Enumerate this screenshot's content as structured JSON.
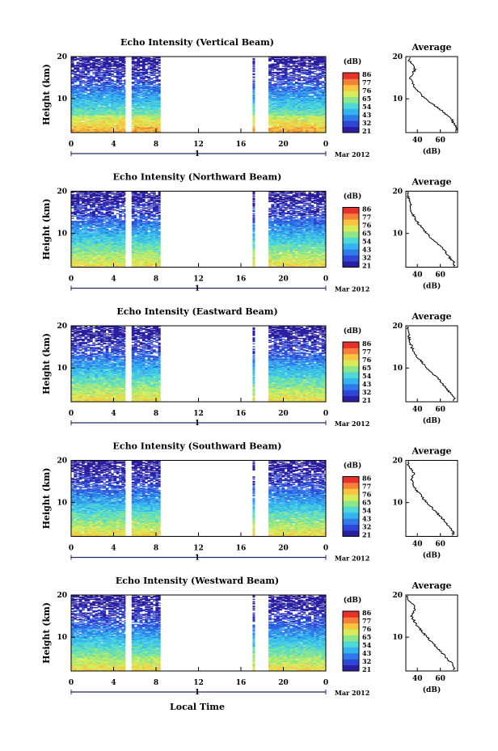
{
  "figure": {
    "x_axis_label": "Local Time",
    "date_label": "Mar 2012",
    "time_ticks": [
      "0",
      "4",
      "8",
      "12",
      "16",
      "20",
      "0"
    ],
    "day_label": "1",
    "height_label": "Height (km)",
    "height_ticks": [
      "20",
      "10"
    ],
    "colorbar_unit": "(dB)",
    "colorbar_ticks": [
      "86",
      "77",
      "76",
      "65",
      "54",
      "43",
      "32",
      "21"
    ],
    "avg_title": "Average",
    "avg_unit": "(dB)",
    "avg_x_ticks": [
      "40",
      "60"
    ]
  },
  "colors": {
    "colormap": [
      "#2b1fa0",
      "#2f46d8",
      "#2f7be8",
      "#35b3ef",
      "#4fd8d6",
      "#8ee68a",
      "#d7ec5a",
      "#f6c640",
      "#f5803a",
      "#e8302a"
    ]
  },
  "chart_data": [
    {
      "type": "heatmap",
      "title": "Echo Intensity (Vertical Beam)",
      "xlabel": "Local Time",
      "ylabel": "Height (km)",
      "xlim": [
        0,
        24
      ],
      "ylim": [
        2,
        20
      ],
      "zlim": [
        21,
        86
      ],
      "data_segments_hours": [
        [
          0,
          5.1
        ],
        [
          5.7,
          8.4
        ],
        [
          17.1,
          17.3
        ],
        [
          18.6,
          24
        ]
      ],
      "profile": {
        "title": "Average",
        "xlabel": "(dB)",
        "xlim": [
          30,
          75
        ],
        "ylim": [
          2,
          20
        ],
        "height_km": [
          3,
          5,
          7,
          9,
          11,
          13,
          15,
          17,
          19
        ],
        "intensity_db": [
          74,
          70,
          62,
          52,
          43,
          37,
          34,
          38,
          33
        ]
      }
    },
    {
      "type": "heatmap",
      "title": "Echo Intensity (Northward Beam)",
      "xlabel": "Local Time",
      "ylabel": "Height (km)",
      "xlim": [
        0,
        24
      ],
      "ylim": [
        2,
        20
      ],
      "zlim": [
        21,
        86
      ],
      "data_segments_hours": [
        [
          0,
          5.1
        ],
        [
          5.7,
          8.4
        ],
        [
          17.1,
          17.3
        ],
        [
          18.6,
          24
        ]
      ],
      "profile": {
        "title": "Average",
        "xlabel": "(dB)",
        "xlim": [
          30,
          75
        ],
        "ylim": [
          2,
          20
        ],
        "height_km": [
          3,
          5,
          7,
          9,
          11,
          13,
          15,
          17,
          19
        ],
        "intensity_db": [
          72,
          66,
          60,
          52,
          45,
          39,
          35,
          34,
          32
        ]
      }
    },
    {
      "type": "heatmap",
      "title": "Echo Intensity (Eastward Beam)",
      "xlabel": "Local Time",
      "ylabel": "Height (km)",
      "xlim": [
        0,
        24
      ],
      "ylim": [
        2,
        20
      ],
      "zlim": [
        21,
        86
      ],
      "data_segments_hours": [
        [
          0,
          5.1
        ],
        [
          5.7,
          8.4
        ],
        [
          17.1,
          17.3
        ],
        [
          18.6,
          24
        ]
      ],
      "profile": {
        "title": "Average",
        "xlabel": "(dB)",
        "xlim": [
          30,
          75
        ],
        "ylim": [
          2,
          20
        ],
        "height_km": [
          3,
          5,
          7,
          9,
          11,
          13,
          15,
          17,
          19
        ],
        "intensity_db": [
          72,
          66,
          60,
          52,
          45,
          39,
          35,
          33,
          32
        ]
      }
    },
    {
      "type": "heatmap",
      "title": "Echo Intensity (Southward Beam)",
      "xlabel": "Local Time",
      "ylabel": "Height (km)",
      "xlim": [
        0,
        24
      ],
      "ylim": [
        2,
        20
      ],
      "zlim": [
        21,
        86
      ],
      "data_segments_hours": [
        [
          0,
          5.1
        ],
        [
          5.7,
          8.4
        ],
        [
          17.1,
          17.3
        ],
        [
          18.6,
          24
        ]
      ],
      "profile": {
        "title": "Average",
        "xlabel": "(dB)",
        "xlim": [
          30,
          75
        ],
        "ylim": [
          2,
          20
        ],
        "height_km": [
          3,
          5,
          7,
          9,
          11,
          13,
          15,
          17,
          19
        ],
        "intensity_db": [
          71,
          66,
          59,
          52,
          45,
          39,
          35,
          37,
          32
        ]
      }
    },
    {
      "type": "heatmap",
      "title": "Echo Intensity (Westward Beam)",
      "xlabel": "Local Time",
      "ylabel": "Height (km)",
      "xlim": [
        0,
        24
      ],
      "ylim": [
        2,
        20
      ],
      "zlim": [
        21,
        86
      ],
      "data_segments_hours": [
        [
          0,
          5.1
        ],
        [
          5.7,
          8.4
        ],
        [
          17.1,
          17.3
        ],
        [
          18.6,
          24
        ]
      ],
      "profile": {
        "title": "Average",
        "xlabel": "(dB)",
        "xlim": [
          30,
          75
        ],
        "ylim": [
          2,
          20
        ],
        "height_km": [
          3,
          5,
          7,
          9,
          11,
          13,
          15,
          17,
          19
        ],
        "intensity_db": [
          72,
          66,
          59,
          52,
          45,
          39,
          35,
          38,
          32
        ]
      }
    }
  ]
}
